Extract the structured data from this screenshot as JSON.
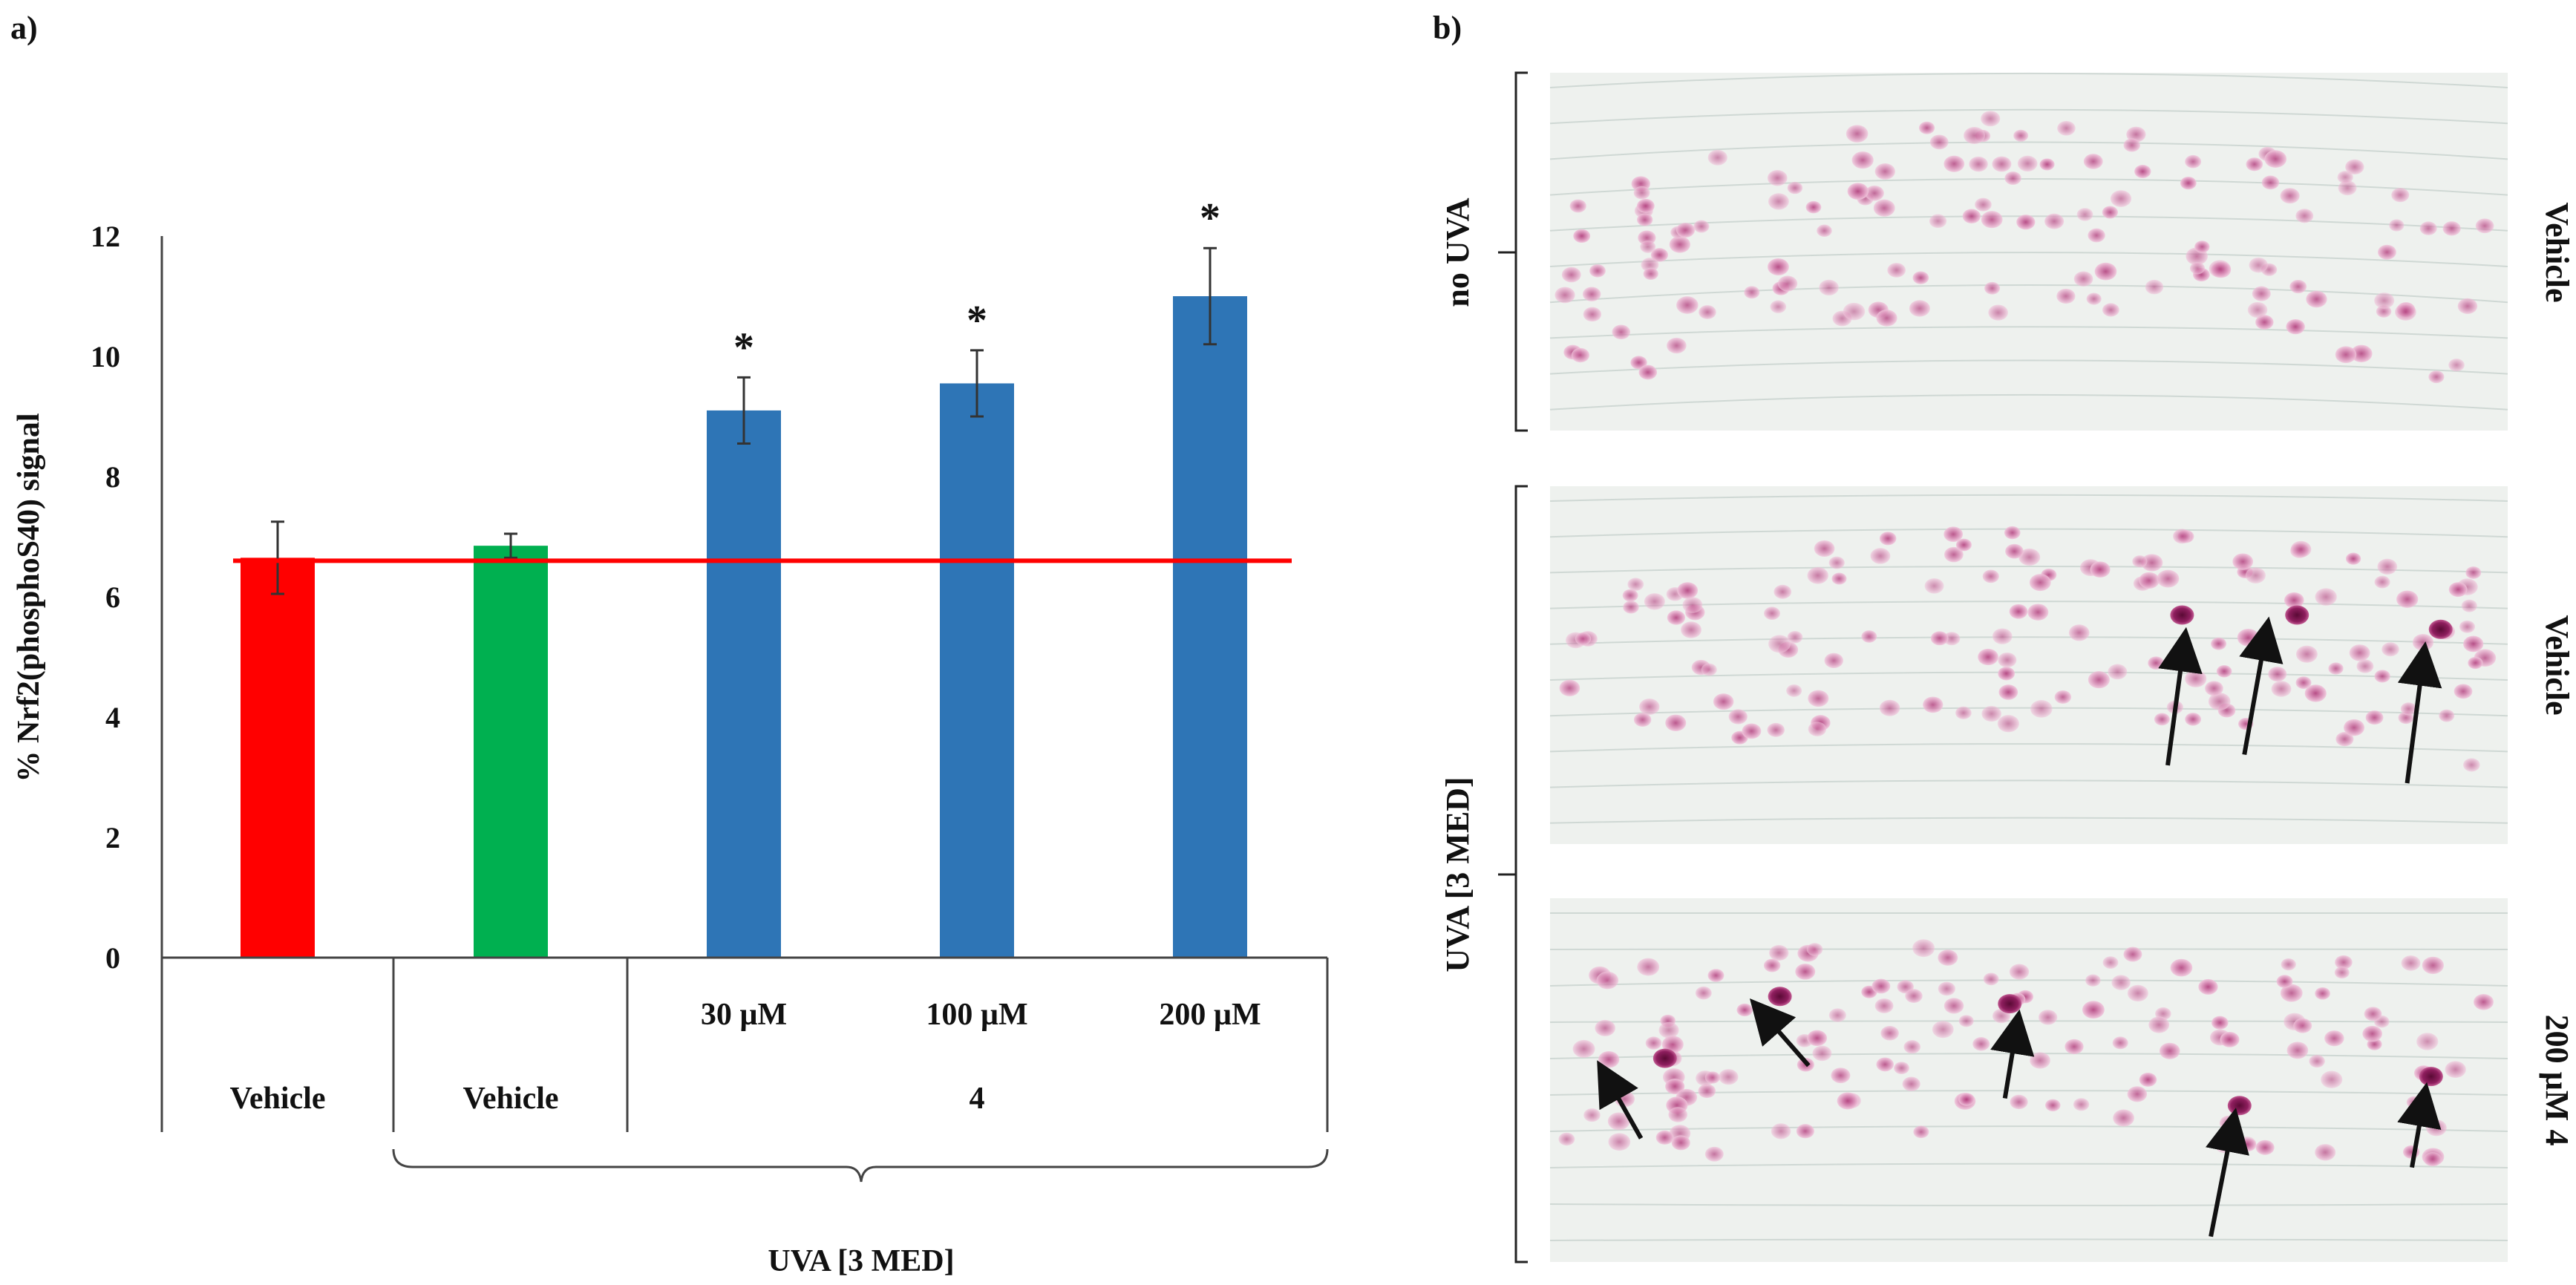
{
  "panels": {
    "a": "a)",
    "b": "b)"
  },
  "chart_data": {
    "type": "bar",
    "ylabel": "% Nrf2(phosphoS40) signal",
    "ylim": [
      0,
      12
    ],
    "yticks": [
      "0",
      "2",
      "4",
      "6",
      "8",
      "10",
      "12"
    ],
    "categories": [
      "Vehicle",
      "Vehicle",
      "30 µM",
      "100 µM",
      "200 µM"
    ],
    "values": [
      6.65,
      6.85,
      9.1,
      9.55,
      11.0
    ],
    "errors": [
      0.6,
      0.2,
      0.55,
      0.55,
      0.8
    ],
    "significance": [
      "",
      "",
      "*",
      "*",
      "*"
    ],
    "colors": [
      "#ff0000",
      "#00b050",
      "#2e75b6",
      "#2e75b6",
      "#2e75b6"
    ],
    "reference_line": {
      "value": 6.6,
      "color": "#ff0000"
    },
    "group_labels": {
      "vehicle_1": "Vehicle",
      "vehicle_2": "Vehicle",
      "compound": "4"
    },
    "bracket_label": "UVA [3 MED]"
  },
  "micrographs": {
    "left_labels": {
      "top": "no UVA",
      "bottom": "UVA [3 MED]"
    },
    "right_labels": [
      "Vehicle",
      "Vehicle",
      "200 µM 4"
    ]
  }
}
